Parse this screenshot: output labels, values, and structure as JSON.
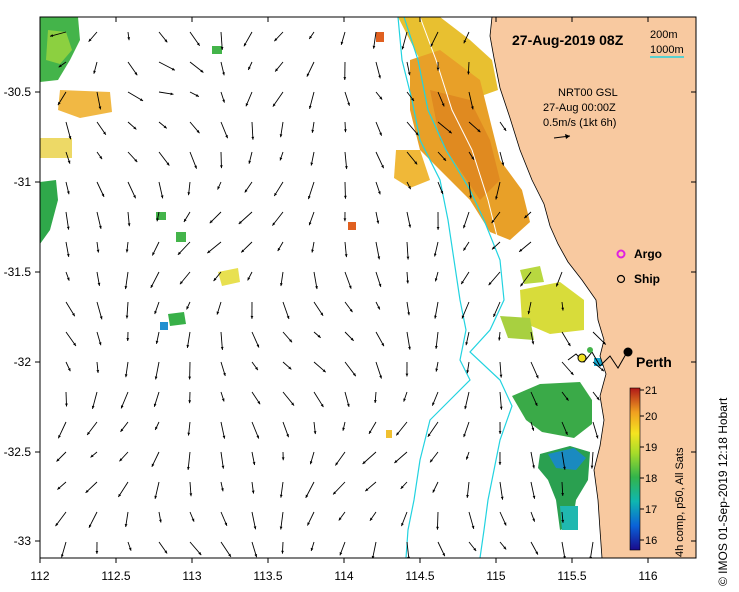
{
  "map": {
    "title": "27-Aug-2019 08Z",
    "depth_legend": {
      "d200": "200m",
      "d1000": "1000m"
    },
    "product": {
      "name": "NRT00 GSL",
      "date": "27-Aug 00:00Z",
      "scale": "0.5m/s (1kt 6h)"
    },
    "markers": {
      "argo": "Argo",
      "ship": "Ship"
    },
    "city": "Perth",
    "colorbar": {
      "title": "4h comp, p50, All Sats",
      "ticks": [
        "21",
        "20",
        "19",
        "18",
        "17",
        "16"
      ]
    },
    "credit": "© IMOS 01-Sep-2019 12:18 Hobart",
    "axes": {
      "x_ticks": [
        "112",
        "112.5",
        "113",
        "113.5",
        "114",
        "114.5",
        "115",
        "115.5",
        "116"
      ],
      "y_ticks": [
        "-30.5",
        "-31",
        "-31.5",
        "-32",
        "-32.5",
        "-33"
      ]
    },
    "colors": {
      "land": "#f8c9a0",
      "isobath": "#22d3e0",
      "arrow": "#000000"
    }
  }
}
